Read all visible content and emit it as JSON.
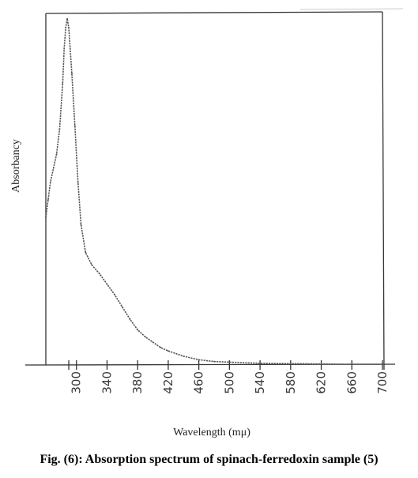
{
  "chart_data": {
    "type": "line",
    "title": "",
    "xlabel": "Wavelength (mμ)",
    "ylabel": "Absorbancy",
    "xlim": [
      260,
      700
    ],
    "ylim": [
      0,
      1
    ],
    "x_ticks": [
      300,
      340,
      380,
      420,
      460,
      500,
      540,
      580,
      620,
      660,
      700
    ],
    "grid": false,
    "legend": "none",
    "series": [
      {
        "x": [
          260,
          263,
          266,
          270,
          274,
          278,
          282,
          284,
          286,
          288,
          290,
          294,
          298,
          302,
          306,
          312,
          320,
          330,
          340,
          350,
          360,
          370,
          380,
          390,
          400,
          410,
          420,
          440,
          460,
          480,
          500,
          540,
          580,
          620,
          660,
          700
        ],
        "y": [
          0.42,
          0.47,
          0.52,
          0.56,
          0.6,
          0.67,
          0.8,
          0.9,
          0.96,
          0.985,
          0.96,
          0.83,
          0.68,
          0.52,
          0.4,
          0.32,
          0.285,
          0.26,
          0.23,
          0.2,
          0.165,
          0.13,
          0.1,
          0.08,
          0.065,
          0.05,
          0.04,
          0.025,
          0.015,
          0.01,
          0.008,
          0.005,
          0.004,
          0.003,
          0.002,
          0.002
        ]
      }
    ],
    "color": "#555555"
  },
  "caption": "Fig. (6): Absorption spectrum of spinach-ferredoxin sample (5)"
}
